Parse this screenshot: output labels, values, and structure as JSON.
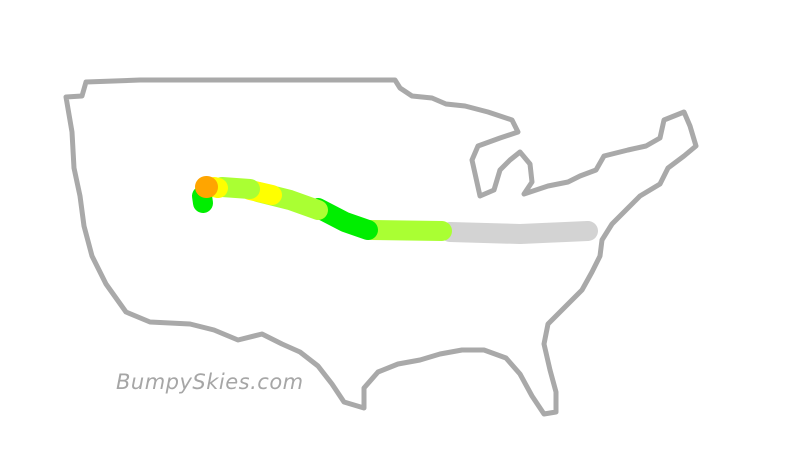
{
  "watermark": "BumpySkies.com",
  "colors": {
    "outline": "#a9a9a9",
    "smooth": "#00ee00",
    "light": "#aaff33",
    "moderate": "#ffff00",
    "severe": "#ffa500",
    "unknown": "#d3d3d3"
  },
  "route_segments": [
    {
      "level": "unknown"
    },
    {
      "level": "light"
    },
    {
      "level": "smooth"
    },
    {
      "level": "light"
    },
    {
      "level": "moderate"
    },
    {
      "level": "light"
    },
    {
      "level": "moderate"
    },
    {
      "level": "smooth"
    },
    {
      "level": "severe"
    }
  ]
}
